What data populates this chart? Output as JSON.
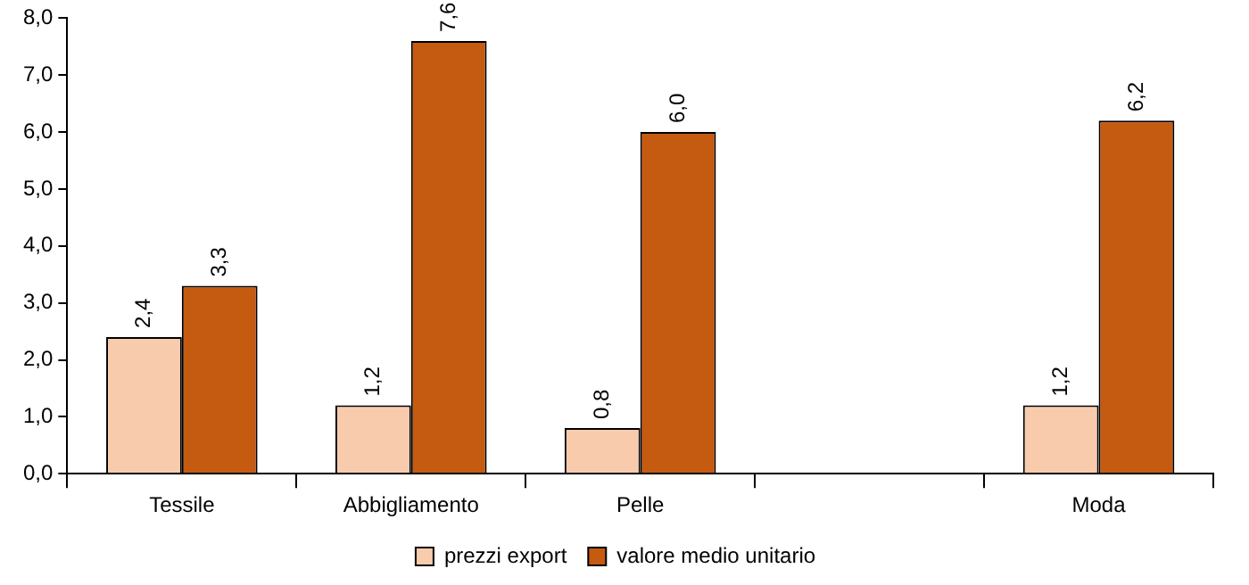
{
  "chart_data": {
    "type": "bar",
    "categories": [
      "Tessile",
      "Abbigliamento",
      "Pelle",
      null,
      "Moda"
    ],
    "series": [
      {
        "name": "prezzi export",
        "color": "#f8cbad",
        "values": [
          2.4,
          1.2,
          0.8,
          null,
          1.2
        ],
        "value_labels": [
          "2,4",
          "1,2",
          "0,8",
          null,
          "1,2"
        ]
      },
      {
        "name": "valore medio unitario",
        "color": "#c55a11",
        "values": [
          3.3,
          7.6,
          6.0,
          null,
          6.2
        ],
        "value_labels": [
          "3,3",
          "7,6",
          "6,0",
          null,
          "6,2"
        ]
      }
    ],
    "ylim": [
      0,
      8
    ],
    "yticks": [
      {
        "value": 0,
        "label": "0,0"
      },
      {
        "value": 1,
        "label": "1,0"
      },
      {
        "value": 2,
        "label": "2,0"
      },
      {
        "value": 3,
        "label": "3,0"
      },
      {
        "value": 4,
        "label": "4,0"
      },
      {
        "value": 5,
        "label": "5,0"
      },
      {
        "value": 6,
        "label": "6,0"
      },
      {
        "value": 7,
        "label": "7,0"
      },
      {
        "value": 8,
        "label": "8,0"
      }
    ],
    "grid": false,
    "legend": "bottom"
  }
}
